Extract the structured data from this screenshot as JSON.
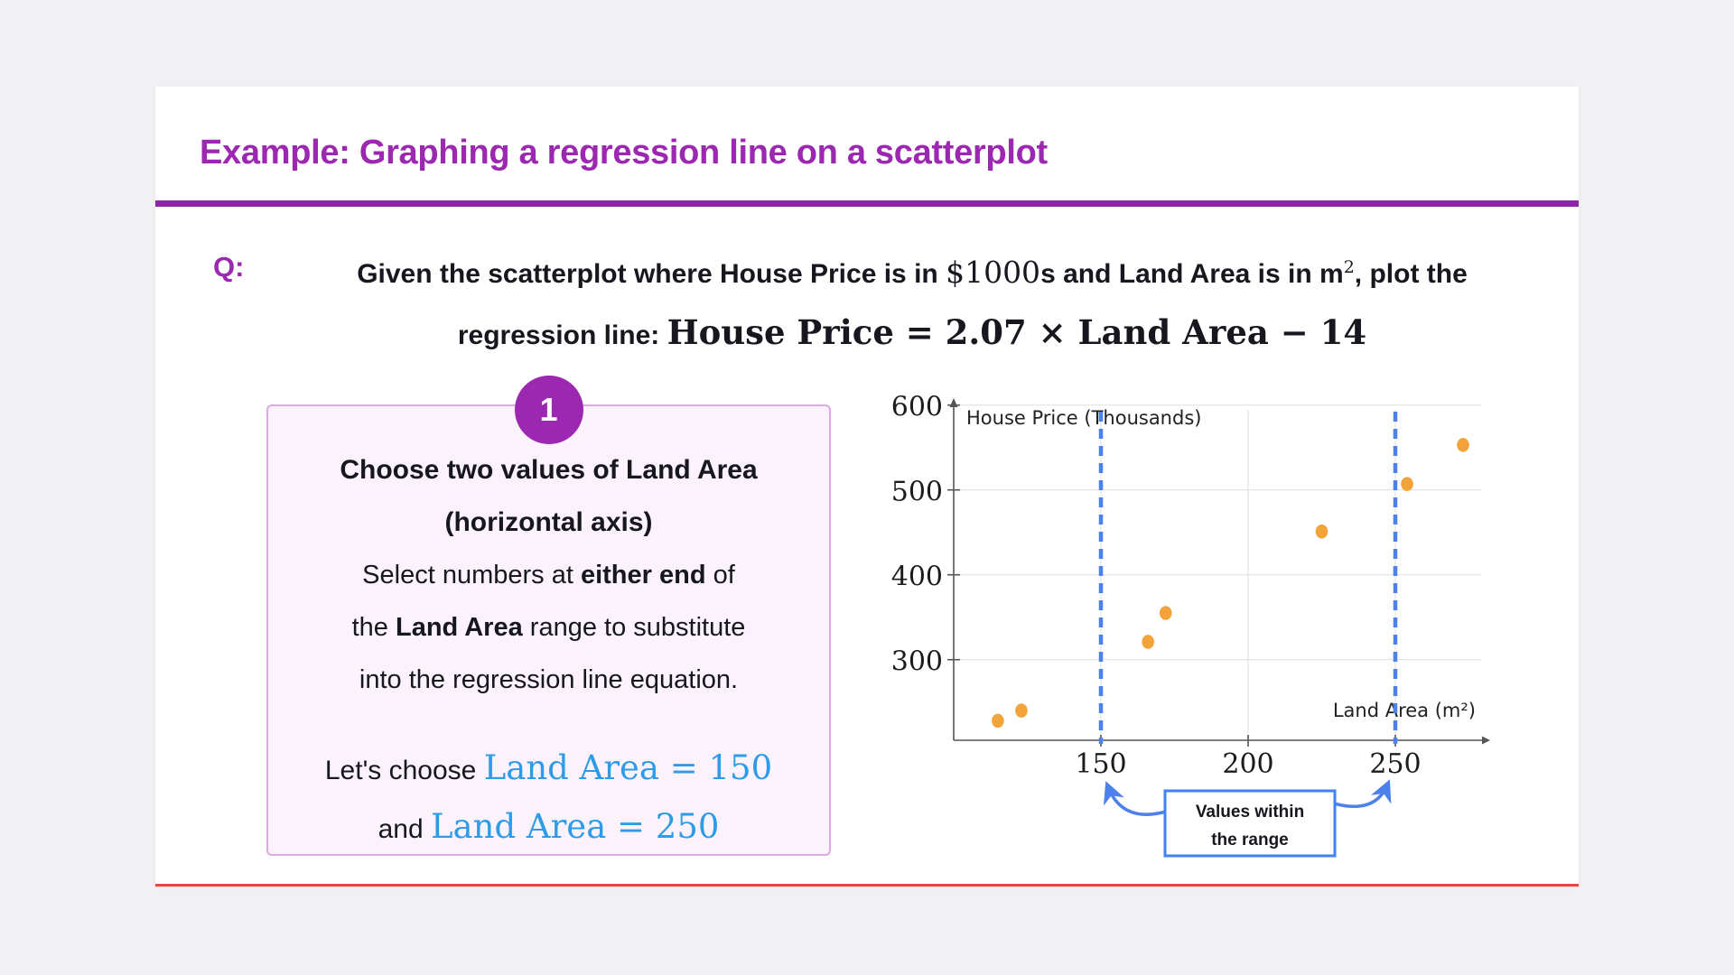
{
  "title": "Example: Graphing a regression line on a scatterplot",
  "question": {
    "q_label": "Q:",
    "line1_part1": "Given the scatterplot where House Price is in ",
    "line1_math1": "$1000",
    "line1_part2": "s and Land Area is in m",
    "line1_sup": "2",
    "line1_part3": ", plot the",
    "line2_label": "regression line: ",
    "line2_math": "House Price = 2.07 × Land Area − 14"
  },
  "step": {
    "number": "1",
    "heading_line1": "Choose two values of Land Area",
    "heading_line2": "(horizontal axis)",
    "body_l1_a": "Select numbers at ",
    "body_l1_b": "either end",
    "body_l1_c": " of",
    "body_l2_a": "the ",
    "body_l2_b": "Land Area",
    "body_l2_c": " range to substitute",
    "body_l3": "into the regression line equation.",
    "choose_l1_text": "Let's choose ",
    "choose_l1_math": "Land Area = 150",
    "choose_l2_text": "and ",
    "choose_l2_math": "Land Area = 250"
  },
  "chart_data": {
    "type": "scatter",
    "ylabel": "House Price (Thousands)",
    "xlabel": "Land Area (m²)",
    "x_ticks": [
      150,
      200,
      250
    ],
    "y_ticks": [
      300,
      400,
      500,
      600
    ],
    "xlim": [
      100,
      290
    ],
    "ylim": [
      205,
      620
    ],
    "grid": true,
    "points": [
      [
        115,
        228
      ],
      [
        123,
        240
      ],
      [
        166,
        321
      ],
      [
        172,
        355
      ],
      [
        225,
        451
      ],
      [
        254,
        507
      ],
      [
        273,
        553
      ]
    ],
    "highlight_x": [
      150,
      250
    ],
    "annotation": {
      "line1": "Values within",
      "line2": "the range",
      "targets": [
        150,
        250
      ]
    },
    "point_color": "#F2A43B",
    "highlight_color": "#4C80EA",
    "annotation_border_color": "#3F82F0"
  },
  "colors": {
    "accent_purple": "#9C27B0",
    "divider_purple": "#8E24AA",
    "math_blue": "#2E9BE8",
    "card_bottom_red": "#E2483D",
    "step_box_bg": "#FBF2FC",
    "step_box_border": "#DCA9E3",
    "page_bg": "#F1F1F4"
  }
}
